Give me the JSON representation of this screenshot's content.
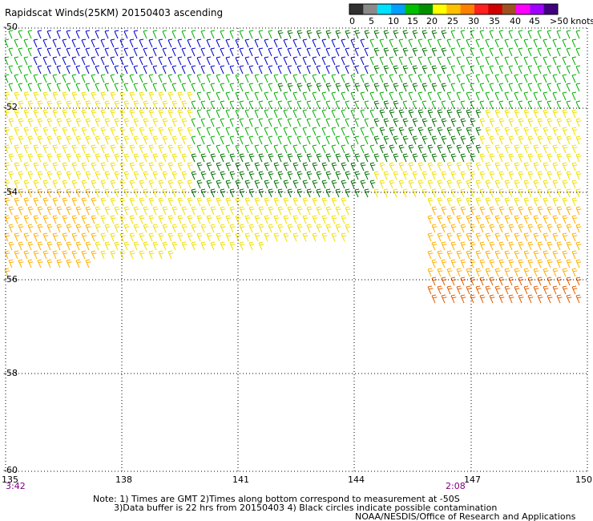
{
  "title": "Rapidscat Winds(25KM) 20150403 ascending",
  "legend": {
    "labels": [
      "0",
      "5",
      "10",
      "15",
      "20",
      "25",
      "30",
      "35",
      "40",
      "45",
      ">50",
      "knots"
    ],
    "colors": [
      "#303030",
      "#8a8a8a",
      "#00e0ff",
      "#00a0ff",
      "#00c000",
      "#009000",
      "#ffff00",
      "#ffc000",
      "#ff8000",
      "#ff2020",
      "#d00000",
      "#a05020",
      "#ff00ff",
      "#a000ff",
      "#400080"
    ]
  },
  "lat_labels": [
    "-50",
    "-52",
    "-54",
    "-56",
    "-58",
    "-60"
  ],
  "lon_labels": [
    "135",
    "138",
    "141",
    "144",
    "147",
    "150"
  ],
  "time_labels": {
    "left": "3:42",
    "right": "2:08"
  },
  "notes": {
    "line1": "Note: 1) Times are GMT 2)Times along bottom correspond to measurement at -50S",
    "line2": "3)Data buffer is 22 hrs from 20150403 4) Black circles indicate possible contamination",
    "credit": "NOAA/NESDIS/Office of Research and Applications"
  },
  "speed_colors": {
    "blue": "#0000cc",
    "green": "#00b000",
    "dark_green": "#007000",
    "yellow": "#f0e000",
    "orange": "#ffb000",
    "dark_orange": "#e06000"
  }
}
